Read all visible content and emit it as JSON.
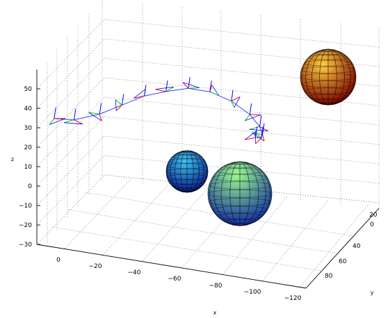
{
  "chart_data": {
    "type": "3d-line",
    "title": "",
    "xlabel": "x",
    "ylabel": "y",
    "zlabel": "z",
    "x_ticks": [
      "0",
      "−20",
      "−40",
      "−60",
      "−80",
      "−100",
      "−120"
    ],
    "y_ticks": [
      "0",
      "20",
      "40",
      "60",
      "80"
    ],
    "z_ticks": [
      "50",
      "40",
      "30",
      "20",
      "10",
      "0",
      "−10",
      "−20",
      "−30"
    ],
    "x_range": [
      10,
      -125
    ],
    "y_range": [
      -10,
      100
    ],
    "z_range": [
      -30,
      55
    ],
    "grid": true,
    "trajectory": {
      "color": "#3344ff",
      "points": [
        {
          "x": 0,
          "y": -5,
          "z": 37
        },
        {
          "x": -10,
          "y": -5,
          "z": 38
        },
        {
          "x": -22,
          "y": -3,
          "z": 42
        },
        {
          "x": -32,
          "y": 0,
          "z": 47
        },
        {
          "x": -42,
          "y": 3,
          "z": 52
        },
        {
          "x": -52,
          "y": 5,
          "z": 55
        },
        {
          "x": -62,
          "y": 8,
          "z": 57
        },
        {
          "x": -72,
          "y": 10,
          "z": 56
        },
        {
          "x": -82,
          "y": 12,
          "z": 52
        },
        {
          "x": -90,
          "y": 15,
          "z": 45
        },
        {
          "x": -92,
          "y": 22,
          "z": 36
        },
        {
          "x": -90,
          "y": 30,
          "z": 28
        },
        {
          "x": -86,
          "y": 38,
          "z": 22
        },
        {
          "x": -80,
          "y": 45,
          "z": 18
        }
      ]
    },
    "frame_axes_colors": [
      "#ff0000",
      "#00cc00",
      "#0000ff"
    ],
    "spheres": [
      {
        "colormap": "hot",
        "colors": [
          "#7a0000",
          "#cc1500",
          "#ff4a00",
          "#ff9a10",
          "#ffd040"
        ]
      },
      {
        "colormap": "jet",
        "colors": [
          "#0a1a8a",
          "#1a3fd0",
          "#1d6cf0",
          "#2a9ef8",
          "#3fc8f5"
        ]
      },
      {
        "colormap": "jet",
        "colors": [
          "#1a3aa0",
          "#1a84d8",
          "#2cbfd8",
          "#4ee6b0",
          "#9cfa90"
        ]
      }
    ]
  }
}
